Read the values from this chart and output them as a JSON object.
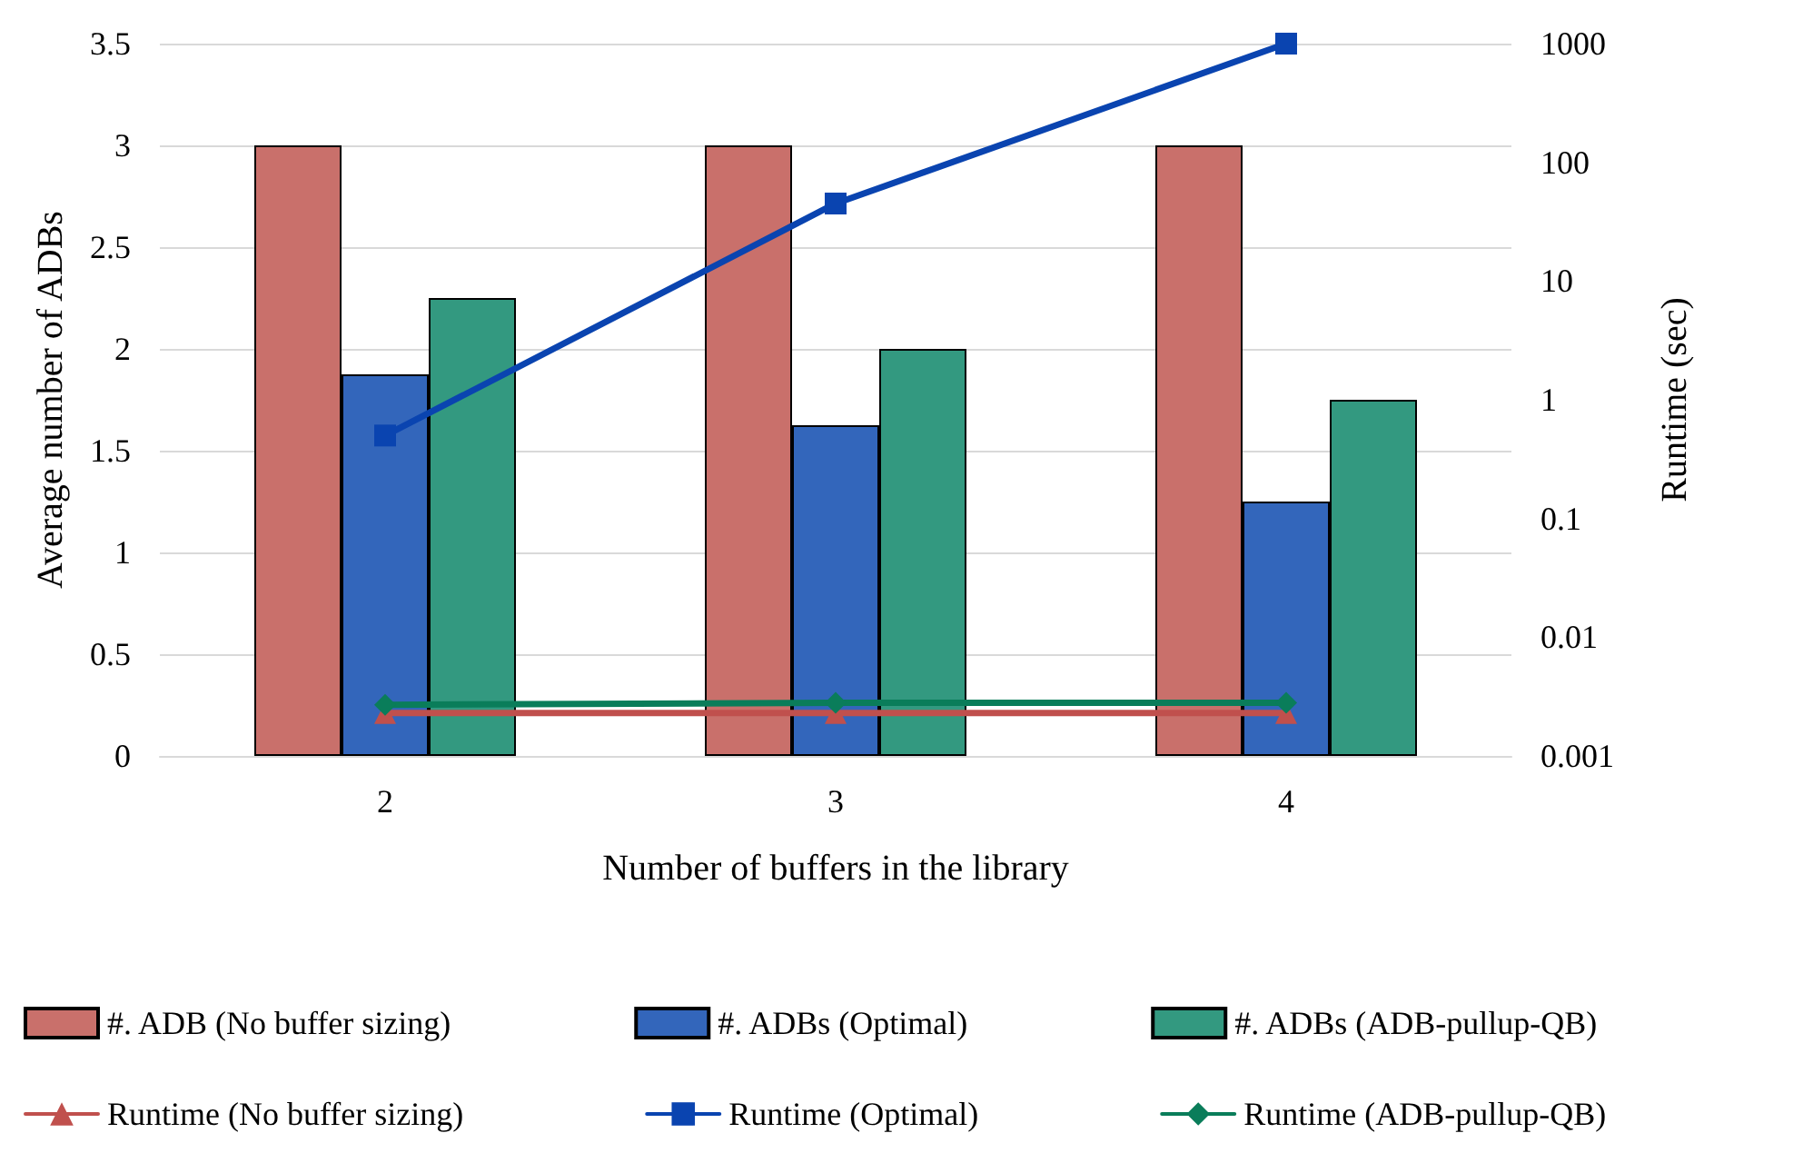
{
  "chart_data": {
    "type": "bar",
    "xlabel": "Number of buffers in the library",
    "ylabel": "Average number of ADBs",
    "y2label": "Runtime (sec)",
    "categories": [
      "2",
      "3",
      "4"
    ],
    "series": [
      {
        "name": "#. ADB (No buffer sizing)",
        "color": "#c9706b",
        "values": [
          3,
          3,
          3
        ]
      },
      {
        "name": "#. ADBs (Optimal)",
        "color": "#3366bb",
        "values": [
          1.875,
          1.625,
          1.25
        ]
      },
      {
        "name": "#. ADBs (ADB-pullup-QB)",
        "color": "#339980",
        "values": [
          2.25,
          2,
          1.75
        ]
      },
      {
        "name": "Runtime (No buffer sizing)",
        "type": "line",
        "axis": "y2",
        "marker": "triangle",
        "color": "#c0504d",
        "values": [
          0.0023,
          0.0023,
          0.0023
        ]
      },
      {
        "name": "Runtime (Optimal)",
        "type": "line",
        "axis": "y2",
        "marker": "square",
        "color": "#0a44b0",
        "values": [
          0.5,
          45,
          1000
        ]
      },
      {
        "name": "Runtime (ADB-pullup-QB)",
        "type": "line",
        "axis": "y2",
        "marker": "diamond",
        "color": "#0a7d5a",
        "values": [
          0.0027,
          0.0028,
          0.0028
        ]
      }
    ],
    "ylim": [
      0,
      3.5
    ],
    "yticks": [
      0,
      0.5,
      1,
      1.5,
      2,
      2.5,
      3,
      3.5
    ],
    "y2lim": [
      0.001,
      1000
    ],
    "y2ticks": [
      0.001,
      0.01,
      0.1,
      1,
      10,
      100,
      1000
    ],
    "log": "y2",
    "grid": "y",
    "legend": "bottom"
  }
}
